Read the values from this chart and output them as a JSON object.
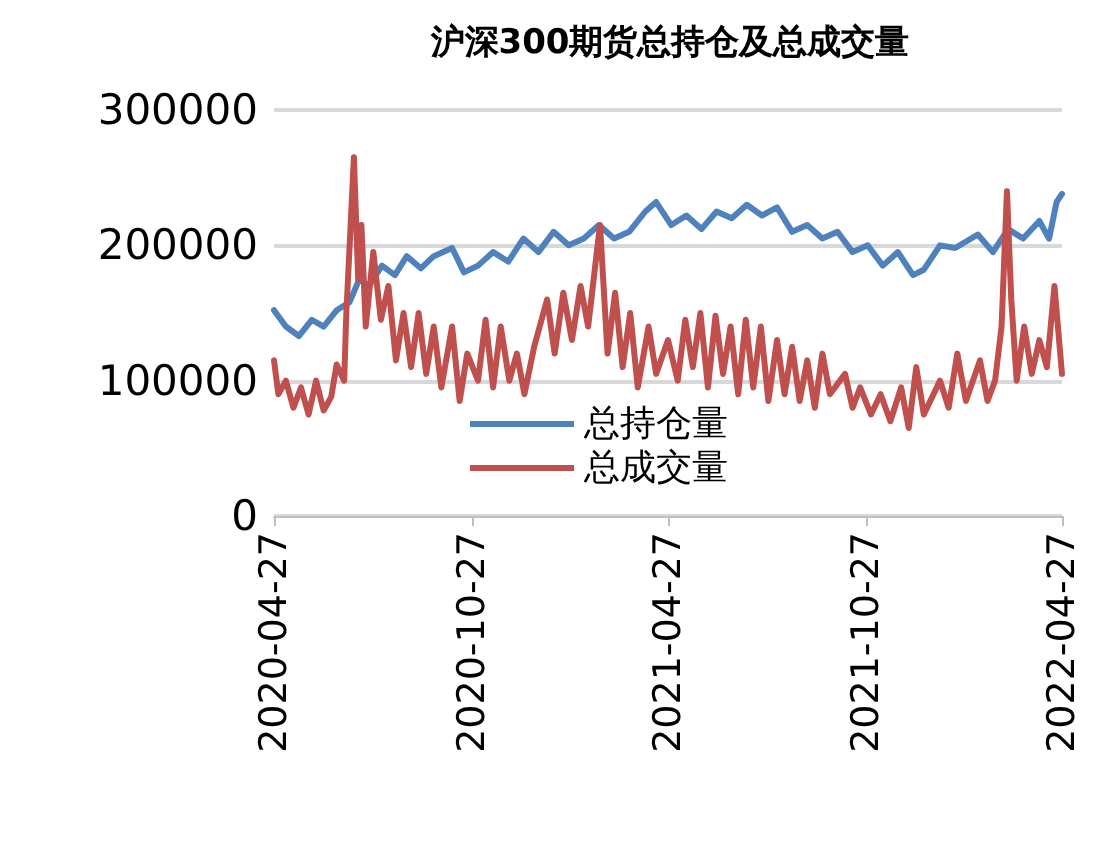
{
  "chart_data": {
    "type": "line",
    "title": "沪深300期货总持仓及总成交量",
    "xlim": [
      "2020-04-27",
      "2022-04-27"
    ],
    "xticks": [
      "2020-04-27",
      "2020-10-27",
      "2021-04-27",
      "2021-10-27",
      "2022-04-27"
    ],
    "ylim": [
      0,
      300000
    ],
    "yticks": [
      0,
      100000,
      200000,
      300000
    ],
    "grid": "y",
    "legend": "bottom",
    "marker": "none",
    "line_style": "solid",
    "series": [
      {
        "name": "总持仓量",
        "color": "#4f81bd",
        "x": [
          "2020-04-27",
          "2020-05-08",
          "2020-05-20",
          "2020-06-01",
          "2020-06-12",
          "2020-06-24",
          "2020-07-06",
          "2020-07-15",
          "2020-07-24",
          "2020-08-05",
          "2020-08-17",
          "2020-08-28",
          "2020-09-10",
          "2020-09-22",
          "2020-10-09",
          "2020-10-20",
          "2020-11-02",
          "2020-11-16",
          "2020-11-30",
          "2020-12-14",
          "2020-12-28",
          "2021-01-11",
          "2021-01-25",
          "2021-02-08",
          "2021-02-22",
          "2021-03-08",
          "2021-03-22",
          "2021-04-06",
          "2021-04-16",
          "2021-04-30",
          "2021-05-14",
          "2021-05-28",
          "2021-06-11",
          "2021-06-25",
          "2021-07-09",
          "2021-07-23",
          "2021-08-06",
          "2021-08-20",
          "2021-09-03",
          "2021-09-17",
          "2021-10-01",
          "2021-10-15",
          "2021-10-29",
          "2021-11-12",
          "2021-11-26",
          "2021-12-10",
          "2021-12-20",
          "2022-01-04",
          "2022-01-18",
          "2022-02-08",
          "2022-02-22",
          "2022-03-08",
          "2022-03-22",
          "2022-04-06",
          "2022-04-15",
          "2022-04-22",
          "2022-04-27"
        ],
        "values": [
          152000,
          140000,
          133000,
          145000,
          140000,
          152000,
          158000,
          175000,
          170000,
          185000,
          178000,
          192000,
          183000,
          192000,
          198000,
          180000,
          185000,
          195000,
          188000,
          205000,
          195000,
          210000,
          200000,
          205000,
          215000,
          205000,
          210000,
          225000,
          232000,
          215000,
          222000,
          212000,
          225000,
          220000,
          230000,
          222000,
          228000,
          210000,
          215000,
          205000,
          210000,
          195000,
          200000,
          185000,
          195000,
          178000,
          182000,
          200000,
          198000,
          208000,
          195000,
          212000,
          205000,
          218000,
          205000,
          232000,
          238000
        ]
      },
      {
        "name": "总成交量",
        "color": "#c0504d",
        "x": [
          "2020-04-27",
          "2020-05-01",
          "2020-05-08",
          "2020-05-15",
          "2020-05-22",
          "2020-05-29",
          "2020-06-05",
          "2020-06-12",
          "2020-06-19",
          "2020-06-24",
          "2020-07-01",
          "2020-07-03",
          "2020-07-07",
          "2020-07-10",
          "2020-07-14",
          "2020-07-17",
          "2020-07-21",
          "2020-07-28",
          "2020-08-04",
          "2020-08-11",
          "2020-08-18",
          "2020-08-25",
          "2020-09-01",
          "2020-09-08",
          "2020-09-15",
          "2020-09-22",
          "2020-09-29",
          "2020-10-09",
          "2020-10-16",
          "2020-10-23",
          "2020-11-02",
          "2020-11-09",
          "2020-11-16",
          "2020-11-23",
          "2020-12-01",
          "2020-12-08",
          "2020-12-15",
          "2020-12-24",
          "2021-01-05",
          "2021-01-12",
          "2021-01-20",
          "2021-01-28",
          "2021-02-05",
          "2021-02-12",
          "2021-02-23",
          "2021-03-02",
          "2021-03-09",
          "2021-03-16",
          "2021-03-23",
          "2021-03-30",
          "2021-04-09",
          "2021-04-16",
          "2021-04-27",
          "2021-05-06",
          "2021-05-13",
          "2021-05-20",
          "2021-05-27",
          "2021-06-03",
          "2021-06-10",
          "2021-06-17",
          "2021-06-24",
          "2021-07-01",
          "2021-07-08",
          "2021-07-15",
          "2021-07-22",
          "2021-07-29",
          "2021-08-06",
          "2021-08-13",
          "2021-08-20",
          "2021-08-27",
          "2021-09-03",
          "2021-09-10",
          "2021-09-17",
          "2021-09-24",
          "2021-10-08",
          "2021-10-15",
          "2021-10-22",
          "2021-11-01",
          "2021-11-10",
          "2021-11-19",
          "2021-11-29",
          "2021-12-06",
          "2021-12-13",
          "2021-12-20",
          "2022-01-04",
          "2022-01-12",
          "2022-01-20",
          "2022-01-28",
          "2022-02-10",
          "2022-02-17",
          "2022-02-24",
          "2022-03-02",
          "2022-03-07",
          "2022-03-11",
          "2022-03-16",
          "2022-03-23",
          "2022-03-30",
          "2022-04-06",
          "2022-04-13",
          "2022-04-20",
          "2022-04-27"
        ],
        "values": [
          115000,
          90000,
          100000,
          80000,
          95000,
          75000,
          100000,
          78000,
          88000,
          112000,
          100000,
          150000,
          215000,
          265000,
          175000,
          215000,
          140000,
          195000,
          145000,
          170000,
          115000,
          150000,
          110000,
          150000,
          105000,
          140000,
          95000,
          140000,
          85000,
          120000,
          100000,
          145000,
          95000,
          140000,
          100000,
          120000,
          90000,
          125000,
          160000,
          120000,
          165000,
          130000,
          170000,
          140000,
          215000,
          120000,
          165000,
          110000,
          150000,
          95000,
          140000,
          105000,
          130000,
          100000,
          145000,
          110000,
          150000,
          95000,
          148000,
          105000,
          140000,
          90000,
          145000,
          95000,
          140000,
          85000,
          130000,
          90000,
          125000,
          85000,
          115000,
          80000,
          120000,
          90000,
          105000,
          80000,
          95000,
          75000,
          90000,
          70000,
          95000,
          65000,
          110000,
          75000,
          100000,
          80000,
          120000,
          85000,
          115000,
          85000,
          100000,
          140000,
          240000,
          160000,
          100000,
          140000,
          105000,
          130000,
          110000,
          170000,
          105000
        ]
      }
    ]
  }
}
